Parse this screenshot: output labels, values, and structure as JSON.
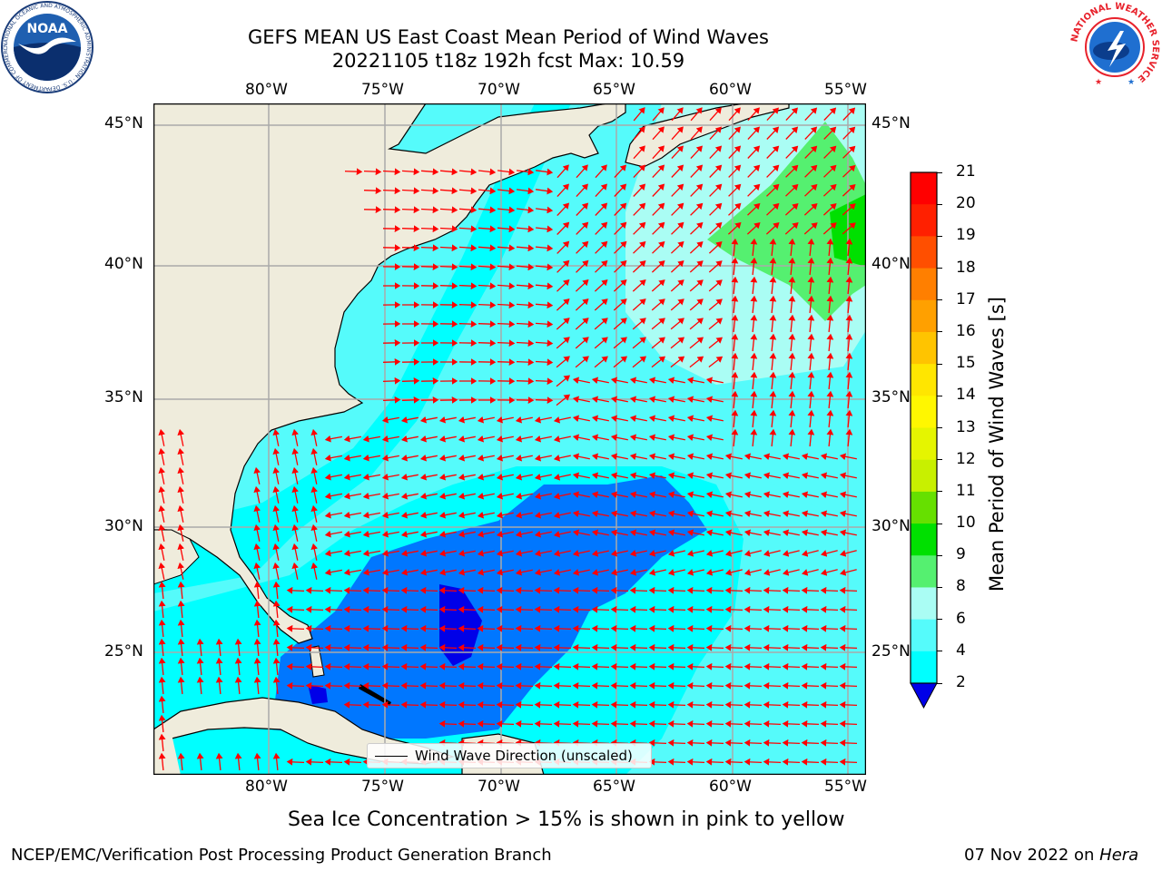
{
  "header": {
    "title": "GEFS MEAN US East Coast Mean Period of Wind Waves",
    "subtitle": "20221105 t18z 192h fcst   Max: 10.59"
  },
  "logos": {
    "left": {
      "icon": "noaa-logo-icon",
      "text": "NOAA",
      "ring_text": "NATIONAL OCEANIC AND ATMOSPHERIC ADMINISTRATION · U.S. DEPARTMENT OF COMMERCE"
    },
    "right": {
      "icon": "nws-logo-icon",
      "ring_text": "NATIONAL WEATHER SERVICE"
    }
  },
  "map": {
    "lon_labels": [
      "80°W",
      "75°W",
      "70°W",
      "65°W",
      "60°W",
      "55°W"
    ],
    "lat_labels": [
      "45°N",
      "40°N",
      "35°N",
      "30°N",
      "25°N"
    ],
    "lon_range": [
      -85,
      -54.4
    ],
    "lat_range": [
      20.5,
      45.8
    ],
    "legend_label": "Wind Wave Direction (unscaled)",
    "colors": {
      "land": "#efecdc",
      "sea_low": "#0000e8",
      "sea_2_4": "#0077ff",
      "sea_4_6": "#00ffff",
      "sea_6_8": "#55fbfb",
      "sea_8_9": "#aafdf4",
      "sea_9_10": "#55f070",
      "sea_10_11": "#00e000",
      "arrow": "#ff0000",
      "grid": "#aaaaaa"
    }
  },
  "colorbar": {
    "label": "Mean Period of Wind Waves [s]",
    "ticks": [
      "21",
      "20",
      "19",
      "18",
      "17",
      "16",
      "15",
      "14",
      "13",
      "12",
      "11",
      "10",
      "9",
      "8",
      "6",
      "4",
      "2"
    ],
    "colors": [
      "#ff0000",
      "#ff2000",
      "#ff4f00",
      "#ff7f00",
      "#ffa000",
      "#ffc400",
      "#ffe600",
      "#fff700",
      "#e5f500",
      "#c8f000",
      "#66e000",
      "#00e000",
      "#55f070",
      "#aafdf4",
      "#55fbfb",
      "#00ffff",
      "#0077ff",
      "#0000e8"
    ]
  },
  "footer": {
    "ice_note": "Sea Ice Concentration > 15% is shown in pink to yellow",
    "branch": "NCEP/EMC/Verification Post Processing Product Generation Branch",
    "date": "07 Nov 2022 on",
    "machine": "Hera"
  }
}
